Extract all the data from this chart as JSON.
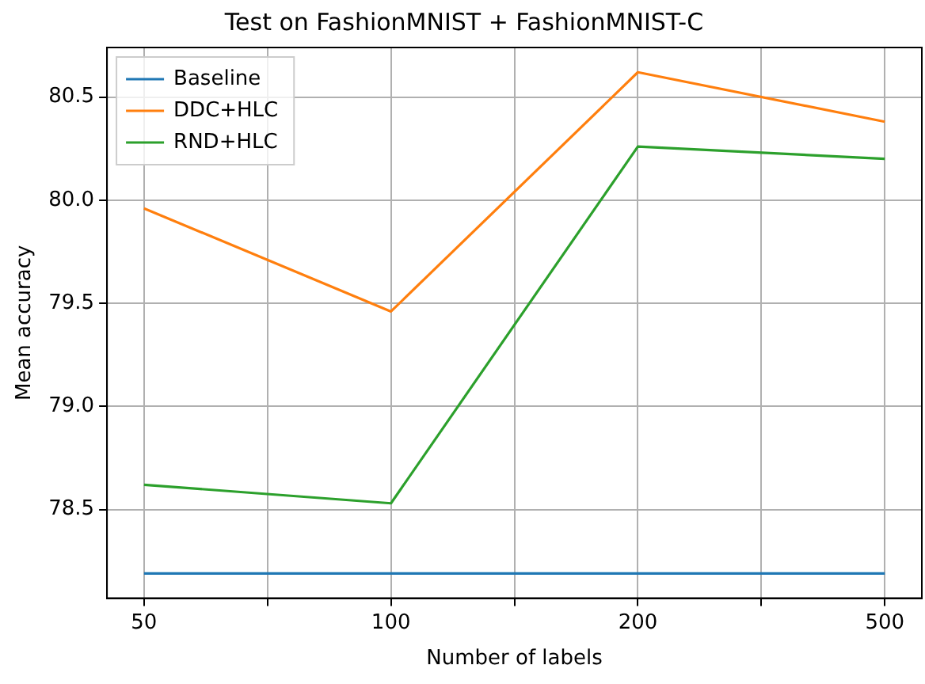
{
  "chart_data": {
    "type": "line",
    "title": "Test on FashionMNIST + FashionMNIST-C",
    "xlabel": "Number of labels",
    "ylabel": "Mean accuracy",
    "categories": [
      "50",
      "100",
      "200",
      "500"
    ],
    "series": [
      {
        "name": "Baseline",
        "color": "#1f77b4",
        "values": [
          78.19,
          78.19,
          78.19,
          78.19
        ]
      },
      {
        "name": "DDC+HLC",
        "color": "#ff7f0e",
        "values": [
          79.96,
          79.46,
          80.62,
          80.38
        ]
      },
      {
        "name": "RND+HLC",
        "color": "#2ca02c",
        "values": [
          78.62,
          78.53,
          80.26,
          80.2
        ]
      }
    ],
    "ylim": [
      78.07,
      80.74
    ],
    "yticks": [
      {
        "value": 78.5,
        "label": "78.5"
      },
      {
        "value": 79,
        "label": "79.0"
      },
      {
        "value": 79.5,
        "label": "79.5"
      },
      {
        "value": 80,
        "label": "80.0"
      },
      {
        "value": 80.5,
        "label": "80.5"
      }
    ],
    "grid": true,
    "legend": "top left",
    "marker": "none",
    "line_style": "solid"
  }
}
